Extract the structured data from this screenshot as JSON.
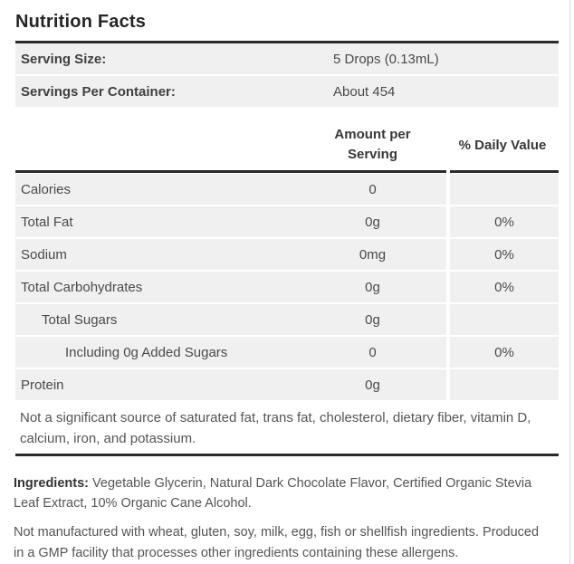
{
  "title": "Nutrition Facts",
  "serving_info": {
    "rows": [
      {
        "label": "Serving Size:",
        "value": "5 Drops (0.13mL)"
      },
      {
        "label": "Servings Per Container:",
        "value": "About 454"
      }
    ]
  },
  "table": {
    "headers": {
      "amount": "Amount per Serving",
      "daily_value": "% Daily Value"
    },
    "rows": [
      {
        "label": "Calories",
        "amount": "0",
        "daily_value": "",
        "indent": 0
      },
      {
        "label": "Total Fat",
        "amount": "0g",
        "daily_value": "0%",
        "indent": 0
      },
      {
        "label": "Sodium",
        "amount": "0mg",
        "daily_value": "0%",
        "indent": 0
      },
      {
        "label": "Total Carbohydrates",
        "amount": "0g",
        "daily_value": "0%",
        "indent": 0
      },
      {
        "label": "Total Sugars",
        "amount": "0g",
        "daily_value": "",
        "indent": 1
      },
      {
        "label": "Including 0g Added Sugars",
        "amount": "0",
        "daily_value": "0%",
        "indent": 2
      },
      {
        "label": "Protein",
        "amount": "0g",
        "daily_value": "",
        "indent": 0
      }
    ],
    "footnote": "Not a significant source of saturated fat, trans fat, cholesterol, dietary fiber, vitamin D, calcium, iron, and potassium."
  },
  "ingredients": {
    "label": "Ingredients:",
    "text": "Vegetable Glycerin, Natural Dark Chocolate Flavor, Certified Organic Stevia Leaf Extract, 10% Organic Cane Alcohol."
  },
  "allergen_note": "Not manufactured with wheat, gluten, soy, milk, egg, fish or shellfish ingredients. Produced in a GMP facility that processes other ingredients containing these allergens.",
  "colors": {
    "row_bg": "#f0f0f0",
    "rule": "#2a2a2a",
    "text": "#4a4a4a",
    "heading": "#252525",
    "page_border": "#d9d9d9"
  }
}
